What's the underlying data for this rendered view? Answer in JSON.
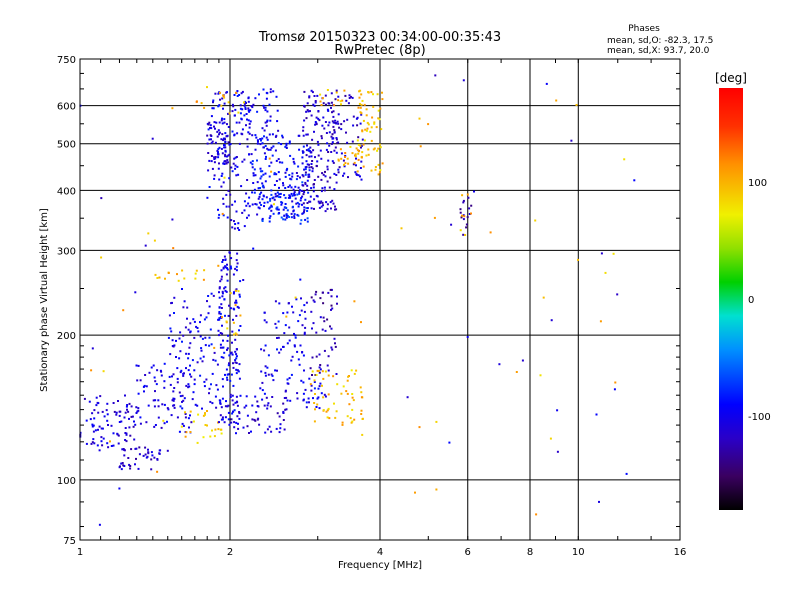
{
  "chart_data": {
    "type": "scatter",
    "title": "Tromsø 20150323 00:34:00-00:35:43",
    "subtitle": "RwPretec (8p)",
    "xlabel": "Frequency [MHz]",
    "ylabel": "Stationary phase Virtual Height [km]",
    "x_scale": "log",
    "y_scale": "log",
    "xlim": [
      1,
      16
    ],
    "ylim": [
      75,
      750
    ],
    "x_ticks": [
      1,
      2,
      4,
      6,
      8,
      10,
      16
    ],
    "x_tick_labels": [
      "1",
      "2",
      "4",
      "6",
      "8",
      "10",
      "16"
    ],
    "y_ticks": [
      75,
      100,
      200,
      300,
      400,
      500,
      600,
      750
    ],
    "y_tick_labels": [
      "75",
      "100",
      "200",
      "300",
      "400",
      "500",
      "600",
      "750"
    ],
    "grid": true,
    "stats": {
      "heading": "Phases",
      "line_o": "mean, sd,O: -82.3, 17.5",
      "line_x": "mean, sd,X:  93.7, 20.0"
    },
    "colorbar": {
      "label": "[deg]",
      "min": -180,
      "max": 180,
      "ticks": [
        100,
        0,
        -100
      ],
      "tick_labels": [
        "100",
        "0",
        "-100"
      ]
    },
    "clusters": [
      {
        "x": [
          1.0,
          1.3
        ],
        "y": [
          115,
          150
        ],
        "phase": -110,
        "n": 90
      },
      {
        "x": [
          1.2,
          1.45
        ],
        "y": [
          105,
          118
        ],
        "phase": -115,
        "n": 40
      },
      {
        "x": [
          1.3,
          1.7
        ],
        "y": [
          125,
          175
        ],
        "phase": -105,
        "n": 80
      },
      {
        "x": [
          1.5,
          1.95
        ],
        "y": [
          140,
          250
        ],
        "phase": -100,
        "n": 120
      },
      {
        "x": [
          1.6,
          1.95
        ],
        "y": [
          118,
          140
        ],
        "phase": 95,
        "n": 25
      },
      {
        "x": [
          1.4,
          1.8
        ],
        "y": [
          255,
          275
        ],
        "phase": 95,
        "n": 15
      },
      {
        "x": [
          1.9,
          2.1
        ],
        "y": [
          130,
          300
        ],
        "phase": -100,
        "n": 150
      },
      {
        "x": [
          1.95,
          2.1
        ],
        "y": [
          200,
          250
        ],
        "phase": 95,
        "n": 12
      },
      {
        "x": [
          2.0,
          2.6
        ],
        "y": [
          125,
          150
        ],
        "phase": -110,
        "n": 60
      },
      {
        "x": [
          2.3,
          2.9
        ],
        "y": [
          145,
          240
        ],
        "phase": -100,
        "n": 90
      },
      {
        "x": [
          2.8,
          3.1
        ],
        "y": [
          140,
          160
        ],
        "phase": -100,
        "n": 20
      },
      {
        "x": [
          2.9,
          3.3
        ],
        "y": [
          165,
          250
        ],
        "phase": -125,
        "n": 50
      },
      {
        "x": [
          2.9,
          3.7
        ],
        "y": [
          130,
          170
        ],
        "phase": 95,
        "n": 60
      },
      {
        "x": [
          1.8,
          2.2
        ],
        "y": [
          330,
          650
        ],
        "phase": -100,
        "n": 150
      },
      {
        "x": [
          1.8,
          2.0
        ],
        "y": [
          450,
          560
        ],
        "phase": -110,
        "n": 60
      },
      {
        "x": [
          2.2,
          2.9
        ],
        "y": [
          350,
          520
        ],
        "phase": -95,
        "n": 200
      },
      {
        "x": [
          2.3,
          2.9
        ],
        "y": [
          340,
          420
        ],
        "phase": -80,
        "n": 60
      },
      {
        "x": [
          2.1,
          2.5
        ],
        "y": [
          520,
          650
        ],
        "phase": -100,
        "n": 50
      },
      {
        "x": [
          2.8,
          3.3
        ],
        "y": [
          360,
          650
        ],
        "phase": -115,
        "n": 180
      },
      {
        "x": [
          3.2,
          3.7
        ],
        "y": [
          420,
          650
        ],
        "phase": -115,
        "n": 60
      },
      {
        "x": [
          3.6,
          4.05
        ],
        "y": [
          430,
          650
        ],
        "phase": 95,
        "n": 70
      },
      {
        "x": [
          3.3,
          3.7
        ],
        "y": [
          450,
          500
        ],
        "phase": 100,
        "n": 20
      },
      {
        "x": [
          1.7,
          2.2
        ],
        "y": [
          560,
          660
        ],
        "phase": 100,
        "n": 15
      },
      {
        "x": [
          3.0,
          3.4
        ],
        "y": [
          600,
          650
        ],
        "phase": 100,
        "n": 12
      },
      {
        "x": [
          5.8,
          6.1
        ],
        "y": [
          320,
          400
        ],
        "phase": -130,
        "n": 15
      },
      {
        "x": [
          5.8,
          6.1
        ],
        "y": [
          320,
          400
        ],
        "phase": 100,
        "n": 6
      },
      {
        "x": [
          1.0,
          13.0
        ],
        "y": [
          80,
          700
        ],
        "phase": 100,
        "n": 50
      },
      {
        "x": [
          1.0,
          13.0
        ],
        "y": [
          80,
          700
        ],
        "phase": -105,
        "n": 45
      }
    ]
  }
}
